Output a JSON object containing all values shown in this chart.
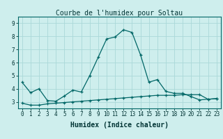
{
  "title": "Courbe de l'humidex pour Soltau",
  "xlabel": "Humidex (Indice chaleur)",
  "background_color": "#ceeeed",
  "grid_color": "#aad8d8",
  "line_color": "#006666",
  "x_ticks": [
    0,
    1,
    2,
    3,
    4,
    5,
    6,
    7,
    8,
    9,
    10,
    11,
    12,
    13,
    14,
    15,
    16,
    17,
    18,
    19,
    20,
    21,
    22,
    23
  ],
  "ylim": [
    2.5,
    9.5
  ],
  "xlim": [
    -0.5,
    23.5
  ],
  "series1_x": [
    0,
    1,
    2,
    3,
    4,
    5,
    6,
    7,
    8,
    9,
    10,
    11,
    12,
    13,
    14,
    15,
    16,
    17,
    18,
    19,
    20,
    21,
    22,
    23
  ],
  "series1_y": [
    4.5,
    3.7,
    4.0,
    3.1,
    3.05,
    3.45,
    3.9,
    3.75,
    5.0,
    6.4,
    7.8,
    7.95,
    8.5,
    8.3,
    6.6,
    4.5,
    4.7,
    3.8,
    3.65,
    3.65,
    3.4,
    3.15,
    3.2,
    3.25
  ],
  "series2_x": [
    0,
    1,
    2,
    3,
    4,
    5,
    6,
    7,
    8,
    9,
    10,
    11,
    12,
    13,
    14,
    15,
    16,
    17,
    18,
    19,
    20,
    21,
    22,
    23
  ],
  "series2_y": [
    2.9,
    2.75,
    2.75,
    2.85,
    2.9,
    2.95,
    3.0,
    3.05,
    3.1,
    3.15,
    3.2,
    3.25,
    3.3,
    3.35,
    3.4,
    3.45,
    3.5,
    3.5,
    3.5,
    3.55,
    3.55,
    3.55,
    3.2,
    3.25
  ],
  "yticks": [
    3,
    4,
    5,
    6,
    7,
    8,
    9
  ],
  "title_fontsize": 7,
  "axis_fontsize": 7,
  "tick_fontsize": 5.5
}
